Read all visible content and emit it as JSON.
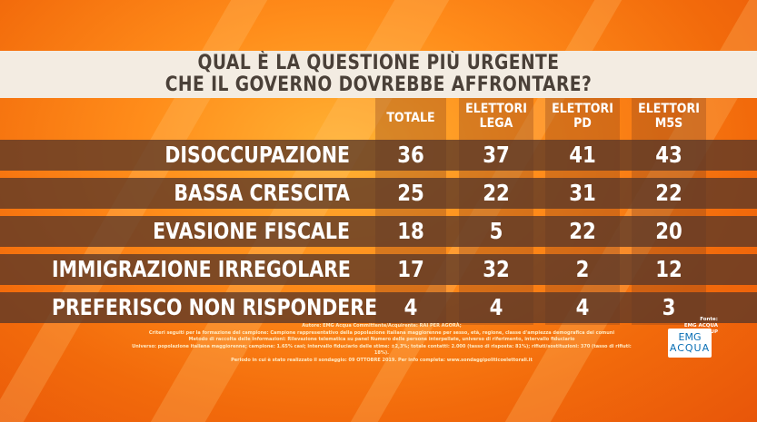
{
  "title": {
    "line1": "QUAL È LA QUESTIONE PIÙ URGENTE",
    "line2": "CHE IL GOVERNO DOVREBBE AFFRONTARE?"
  },
  "columns": [
    {
      "line1": "TOTALE",
      "line2": ""
    },
    {
      "line1": "ELETTORI",
      "line2": "LEGA"
    },
    {
      "line1": "ELETTORI",
      "line2": "PD"
    },
    {
      "line1": "ELETTORI",
      "line2": "M5S"
    }
  ],
  "rows": [
    {
      "label": "DISOCCUPAZIONE",
      "values": [
        "36",
        "37",
        "41",
        "43"
      ]
    },
    {
      "label": "BASSA CRESCITA",
      "values": [
        "25",
        "22",
        "31",
        "22"
      ]
    },
    {
      "label": "EVASIONE FISCALE",
      "values": [
        "18",
        "5",
        "22",
        "20"
      ]
    },
    {
      "label": "IMMIGRAZIONE IRREGOLARE",
      "values": [
        "17",
        "32",
        "2",
        "12"
      ]
    },
    {
      "label": "PREFERISCO NON RISPONDERE",
      "values": [
        "4",
        "4",
        "4",
        "3"
      ]
    }
  ],
  "footnotes": [
    "Autore: EMG Acqua Committente/Acquirente: RAI PER AGORÀ;",
    "Criteri seguiti per la formazione del campione: Campione rappresentativo della popolazione italiana maggiorenne per sesso, età, regione, classe d'ampiezza demografica dei comuni",
    "Metodo di raccolta delle informazioni: Rilevazione telematica su panel Numero delle persone interpellate, universo di riferimento, intervallo fiduciario",
    "Universo: popolazione italiana maggiorenne; campione: 1.65% casi; intervallo fiduciario delle stime: ±2,3%; totale contatti: 2.000 (tasso di risposta: 81%); rifiuti/sostituzioni: 370 (tasso di rifiuti: 18%).",
    "Periodo in cui è stato realizzato il sondaggio: 09 OTTOBRE 2019. Per info completa: www.sondaggipoliticoelettorali.it"
  ],
  "source": {
    "label": "Fonte:",
    "name": "EMG ACQUA GROUP"
  },
  "logo": {
    "line1": "EMG",
    "line2": "ACQUA"
  }
}
